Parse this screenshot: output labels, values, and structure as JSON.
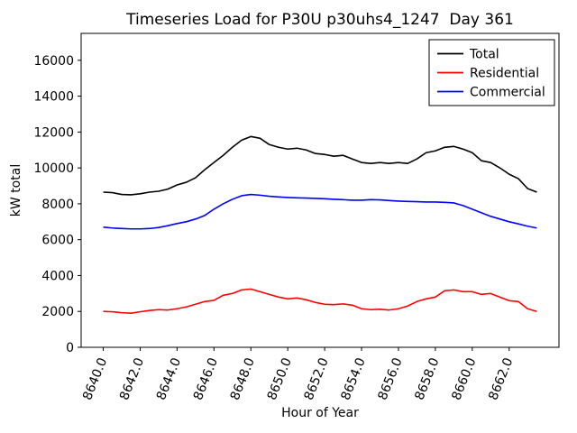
{
  "chart_data": {
    "type": "line",
    "title": "Timeseries Load for P30U p30uhs4_1247  Day 361",
    "xlabel": "Hour of Year",
    "ylabel": "kW total",
    "xlim": [
      8638.8,
      8664.7
    ],
    "ylim": [
      0,
      17500
    ],
    "grid": false,
    "legend_position": "upper right",
    "x_ticks": [
      8640,
      8642,
      8644,
      8646,
      8648,
      8650,
      8652,
      8654,
      8656,
      8658,
      8660,
      8662
    ],
    "x_tick_labels": [
      "8640.0",
      "8642.0",
      "8644.0",
      "8646.0",
      "8648.0",
      "8650.0",
      "8652.0",
      "8654.0",
      "8656.0",
      "8658.0",
      "8660.0",
      "8662.0"
    ],
    "y_ticks": [
      0,
      2000,
      4000,
      6000,
      8000,
      10000,
      12000,
      14000,
      16000
    ],
    "y_tick_labels": [
      "0",
      "2000",
      "4000",
      "6000",
      "8000",
      "10000",
      "12000",
      "14000",
      "16000"
    ],
    "x": [
      8640.0,
      8640.5,
      8641.0,
      8641.5,
      8642.0,
      8642.5,
      8643.0,
      8643.5,
      8644.0,
      8644.5,
      8645.0,
      8645.5,
      8646.0,
      8646.5,
      8647.0,
      8647.5,
      8648.0,
      8648.5,
      8649.0,
      8649.5,
      8650.0,
      8650.5,
      8651.0,
      8651.5,
      8652.0,
      8652.5,
      8653.0,
      8653.5,
      8654.0,
      8654.5,
      8655.0,
      8655.5,
      8656.0,
      8656.5,
      8657.0,
      8657.5,
      8658.0,
      8658.5,
      8659.0,
      8659.5,
      8660.0,
      8660.5,
      8661.0,
      8661.5,
      8662.0,
      8662.5,
      8663.0,
      8663.5
    ],
    "series": [
      {
        "name": "Total",
        "color": "#000000",
        "values": [
          8650,
          8620,
          8520,
          8500,
          8560,
          8650,
          8700,
          8820,
          9050,
          9200,
          9450,
          9900,
          10300,
          10700,
          11150,
          11550,
          11750,
          11650,
          11300,
          11150,
          11050,
          11100,
          11000,
          10800,
          10750,
          10650,
          10700,
          10500,
          10300,
          10250,
          10300,
          10250,
          10300,
          10250,
          10500,
          10850,
          10950,
          11150,
          11200,
          11050,
          10850,
          10400,
          10300,
          10000,
          9650,
          9400,
          8850,
          8650
        ]
      },
      {
        "name": "Residential",
        "color": "#ff0000",
        "values": [
          2000,
          1980,
          1930,
          1900,
          1980,
          2050,
          2100,
          2080,
          2150,
          2250,
          2400,
          2550,
          2620,
          2900,
          3000,
          3200,
          3250,
          3100,
          2950,
          2800,
          2700,
          2750,
          2650,
          2500,
          2400,
          2380,
          2420,
          2350,
          2150,
          2100,
          2120,
          2080,
          2150,
          2300,
          2550,
          2700,
          2800,
          3150,
          3200,
          3100,
          3100,
          2950,
          3000,
          2800,
          2600,
          2550,
          2150,
          2000
        ]
      },
      {
        "name": "Commercial",
        "color": "#0000ff",
        "values": [
          6700,
          6650,
          6620,
          6600,
          6600,
          6620,
          6680,
          6780,
          6900,
          7000,
          7150,
          7350,
          7700,
          8000,
          8250,
          8450,
          8520,
          8480,
          8420,
          8380,
          8350,
          8330,
          8320,
          8300,
          8280,
          8250,
          8230,
          8200,
          8200,
          8230,
          8220,
          8180,
          8150,
          8130,
          8120,
          8100,
          8100,
          8080,
          8050,
          7900,
          7700,
          7500,
          7300,
          7150,
          7000,
          6880,
          6750,
          6650
        ]
      }
    ]
  }
}
